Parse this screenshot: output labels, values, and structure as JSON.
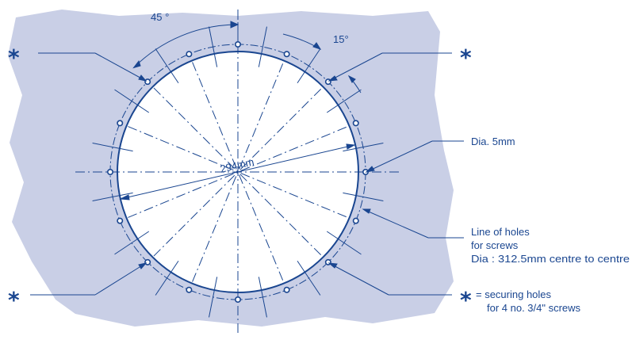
{
  "colors": {
    "ink": "#1a4690",
    "wall": "#c9cfe6",
    "paper": "#ffffff"
  },
  "diagram": {
    "angle_major": "45 °",
    "angle_minor": "15°",
    "diameter": "294mm",
    "hole_dia": "Dia. 5mm",
    "line_of_holes": [
      "Line of holes",
      "for screws",
      "Dia : 312.5mm centre to centre"
    ],
    "star_symbol": "*",
    "securing_note_eq": "= securing holes",
    "securing_note_2": "for 4 no. 3/4\" screws",
    "hole_count": 16
  }
}
